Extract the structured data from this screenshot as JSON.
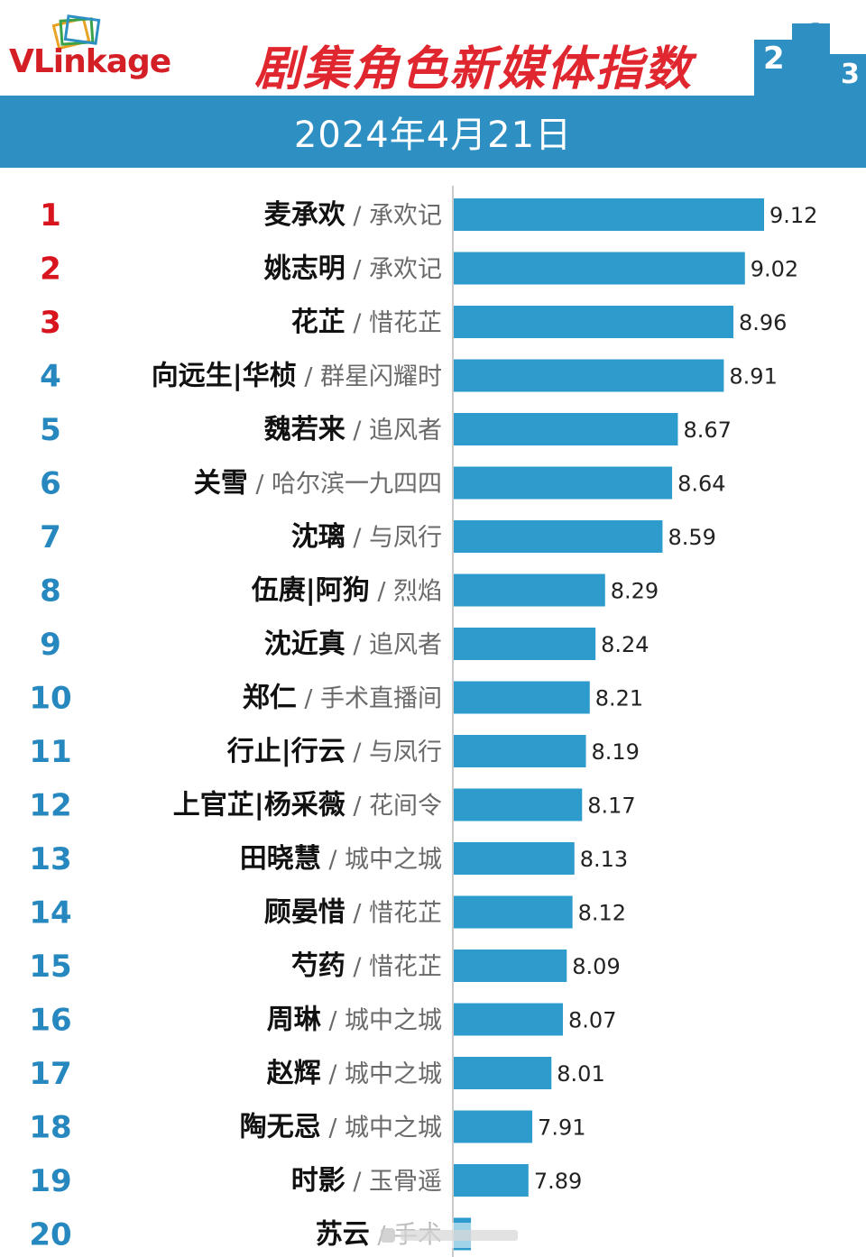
{
  "header": {
    "logo_text": "VLinkage",
    "title": "剧集角色新媒体指数",
    "date": "2024年4月21日"
  },
  "colors": {
    "bar": "#2e9bcd",
    "band": "#2e8fc3",
    "top_rank": "#d8141e",
    "other_rank": "#2688bf",
    "title": "#e0262e",
    "podium": "#2e8fc3"
  },
  "icons": [
    "frame-logo-icon",
    "podium-icon"
  ],
  "chart_data": {
    "type": "bar",
    "orientation": "horizontal",
    "title": "剧集角色新媒体指数",
    "date": "2024年4月21日",
    "xlim": [
      7.5,
      9.3
    ],
    "ranks": [
      1,
      2,
      3,
      4,
      5,
      6,
      7,
      8,
      9,
      10,
      11,
      12,
      13,
      14,
      15,
      16,
      17,
      18,
      19,
      20
    ],
    "roles": [
      "麦承欢",
      "姚志明",
      "花芷",
      "向远生|华桢",
      "魏若来",
      "关雪",
      "沈璃",
      "伍赓|阿狗",
      "沈近真",
      "郑仁",
      "行止|行云",
      "上官芷|杨采薇",
      "田晓慧",
      "顾晏惜",
      "芍药",
      "周琳",
      "赵辉",
      "陶无忌",
      "时影",
      "苏云"
    ],
    "shows": [
      "承欢记",
      "承欢记",
      "惜花芷",
      "群星闪耀时",
      "追风者",
      "哈尔滨一九四四",
      "与凤行",
      "烈焰",
      "追风者",
      "手术直播间",
      "与凤行",
      "花间令",
      "城中之城",
      "惜花芷",
      "惜花芷",
      "城中之城",
      "城中之城",
      "城中之城",
      "玉骨遥",
      "手术"
    ],
    "values": [
      9.12,
      9.02,
      8.96,
      8.91,
      8.67,
      8.64,
      8.59,
      8.29,
      8.24,
      8.21,
      8.19,
      8.17,
      8.13,
      8.12,
      8.09,
      8.07,
      8.01,
      7.91,
      7.89,
      7.59
    ],
    "value_labels": [
      "9.12",
      "9.02",
      "8.96",
      "8.91",
      "8.67",
      "8.64",
      "8.59",
      "8.29",
      "8.24",
      "8.21",
      "8.19",
      "8.17",
      "8.13",
      "8.12",
      "8.09",
      "8.07",
      "8.01",
      "7.91",
      "7.89",
      ""
    ]
  }
}
